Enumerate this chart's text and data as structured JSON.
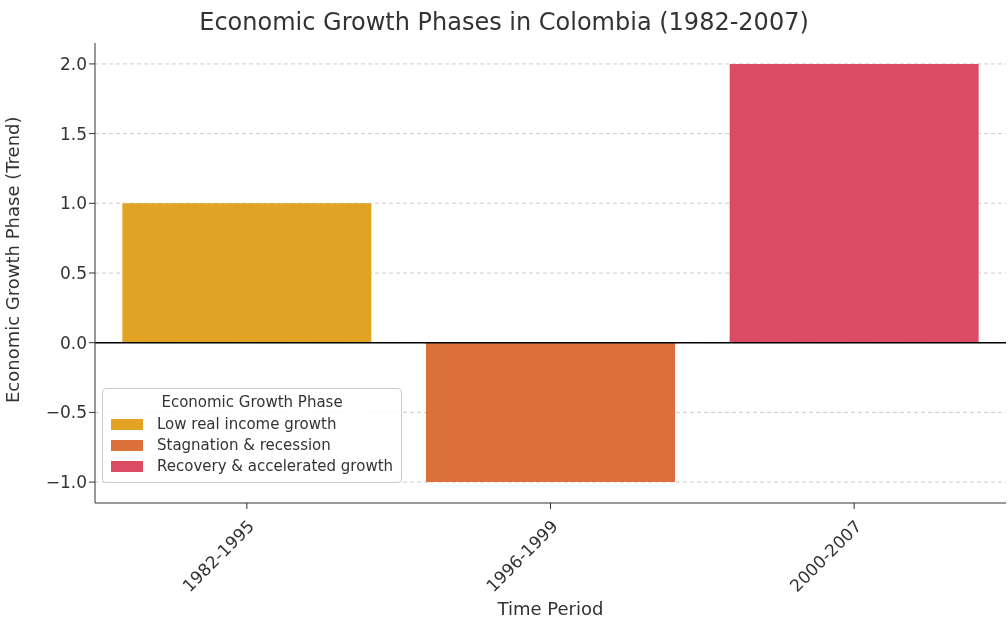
{
  "chart_data": {
    "type": "bar",
    "title": "Economic Growth Phases in Colombia (1982-2007)",
    "xlabel": "Time Period",
    "ylabel": "Economic Growth Phase (Trend)",
    "legend_title": "Economic Growth Phase",
    "categories": [
      "1982-1995",
      "1996-1999",
      "2000-2007"
    ],
    "series": [
      {
        "name": "Low real income growth",
        "color": "#e0a323",
        "values": [
          1,
          null,
          null
        ]
      },
      {
        "name": "Stagnation & recession",
        "color": "#db703b",
        "values": [
          null,
          -1,
          null
        ]
      },
      {
        "name": "Recovery & accelerated growth",
        "color": "#dc4b64",
        "values": [
          null,
          null,
          2
        ]
      }
    ],
    "stacked": true,
    "ylim": [
      -1.15,
      2.15
    ],
    "yticks": [
      {
        "value": -1,
        "label": "−1.0"
      },
      {
        "value": -0.5,
        "label": "−0.5"
      },
      {
        "value": 0,
        "label": "0.0"
      },
      {
        "value": 0.5,
        "label": "0.5"
      },
      {
        "value": 1,
        "label": "1.0"
      },
      {
        "value": 1.5,
        "label": "1.5"
      },
      {
        "value": 2,
        "label": "2.0"
      }
    ],
    "ref_lines": [
      {
        "axis": "y",
        "value": 0,
        "color": "#000000"
      }
    ],
    "grid": "y",
    "legend": "bottom left"
  }
}
